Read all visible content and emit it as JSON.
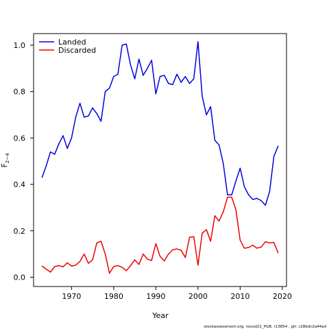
{
  "chart_data": {
    "type": "line",
    "xlabel": "Year",
    "ylabel": "F",
    "ylabel_subscript": "2−4",
    "xlim": [
      1961,
      2021
    ],
    "ylim": [
      -0.04,
      1.05
    ],
    "xticks": [
      1970,
      1980,
      1990,
      2000,
      2010,
      2020
    ],
    "yticks": [
      0.0,
      0.2,
      0.4,
      0.6,
      0.8,
      1.0
    ],
    "ytick_labels": [
      "0.0",
      "0.2",
      "0.4",
      "0.6",
      "0.8",
      "1.0"
    ],
    "legend_position": "top-left",
    "x": [
      1963,
      1964,
      1965,
      1966,
      1967,
      1968,
      1969,
      1970,
      1971,
      1972,
      1973,
      1974,
      1975,
      1976,
      1977,
      1978,
      1979,
      1980,
      1981,
      1982,
      1983,
      1984,
      1985,
      1986,
      1987,
      1988,
      1989,
      1990,
      1991,
      1992,
      1993,
      1994,
      1995,
      1996,
      1997,
      1998,
      1999,
      2000,
      2001,
      2002,
      2003,
      2004,
      2005,
      2006,
      2007,
      2008,
      2009,
      2010,
      2011,
      2012,
      2013,
      2014,
      2015,
      2016,
      2017,
      2018,
      2019
    ],
    "series": [
      {
        "name": "Landed",
        "color": "#0000dd",
        "values": [
          0.43,
          0.48,
          0.54,
          0.53,
          0.575,
          0.61,
          0.555,
          0.6,
          0.69,
          0.75,
          0.69,
          0.695,
          0.73,
          0.705,
          0.672,
          0.8,
          0.815,
          0.865,
          0.875,
          1.0,
          1.005,
          0.915,
          0.855,
          0.94,
          0.87,
          0.9,
          0.935,
          0.79,
          0.865,
          0.87,
          0.835,
          0.83,
          0.875,
          0.84,
          0.865,
          0.835,
          0.855,
          1.015,
          0.78,
          0.7,
          0.735,
          0.59,
          0.57,
          0.49,
          0.355,
          0.355,
          0.415,
          0.47,
          0.39,
          0.355,
          0.335,
          0.34,
          0.33,
          0.31,
          0.37,
          0.52,
          0.565
        ]
      },
      {
        "name": "Discarded",
        "color": "#ee0000",
        "values": [
          0.048,
          0.035,
          0.022,
          0.046,
          0.05,
          0.045,
          0.062,
          0.048,
          0.052,
          0.068,
          0.1,
          0.06,
          0.075,
          0.148,
          0.155,
          0.1,
          0.017,
          0.046,
          0.05,
          0.043,
          0.028,
          0.05,
          0.075,
          0.055,
          0.1,
          0.078,
          0.072,
          0.145,
          0.09,
          0.07,
          0.1,
          0.118,
          0.122,
          0.116,
          0.085,
          0.172,
          0.175,
          0.052,
          0.19,
          0.205,
          0.155,
          0.265,
          0.242,
          0.282,
          0.345,
          0.345,
          0.29,
          0.16,
          0.125,
          0.128,
          0.138,
          0.125,
          0.13,
          0.153,
          0.148,
          0.15,
          0.105
        ]
      }
    ]
  },
  "footer": {
    "note": "stockassessment.org, nscod21_PGB, r13854 , git: c28bdc2a44ad"
  }
}
